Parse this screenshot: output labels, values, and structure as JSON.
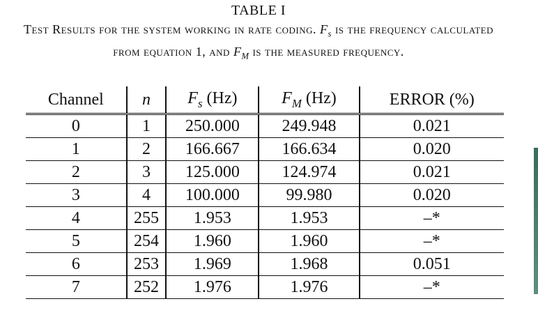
{
  "table": {
    "title": "TABLE I",
    "caption_parts": {
      "p1": "Test Results for the system working in rate coding. ",
      "fs": "F",
      "fs_sub": "s",
      "p2": " is the frequency calculated from equation 1, and ",
      "fm": "F",
      "fm_sub": "M",
      "p3": " is the measured frequency."
    },
    "headers": {
      "channel": "Channel",
      "n": "n",
      "fs": "F",
      "fs_sub": "s",
      "fs_unit": " (Hz)",
      "fm": "F",
      "fm_sub": "M",
      "fm_unit": " (Hz)",
      "error": "ERROR (%)"
    },
    "rows": [
      {
        "channel": "0",
        "n": "1",
        "fs": "250.000",
        "fm": "249.948",
        "error": "0.021"
      },
      {
        "channel": "1",
        "n": "2",
        "fs": "166.667",
        "fm": "166.634",
        "error": "0.020"
      },
      {
        "channel": "2",
        "n": "3",
        "fs": "125.000",
        "fm": "124.974",
        "error": "0.021"
      },
      {
        "channel": "3",
        "n": "4",
        "fs": "100.000",
        "fm": "99.980",
        "error": "0.020"
      },
      {
        "channel": "4",
        "n": "255",
        "fs": "1.953",
        "fm": "1.953",
        "error": "–*"
      },
      {
        "channel": "5",
        "n": "254",
        "fs": "1.960",
        "fm": "1.960",
        "error": "–*"
      },
      {
        "channel": "6",
        "n": "253",
        "fs": "1.969",
        "fm": "1.968",
        "error": "0.051"
      },
      {
        "channel": "7",
        "n": "252",
        "fs": "1.976",
        "fm": "1.976",
        "error": "–*"
      }
    ]
  }
}
